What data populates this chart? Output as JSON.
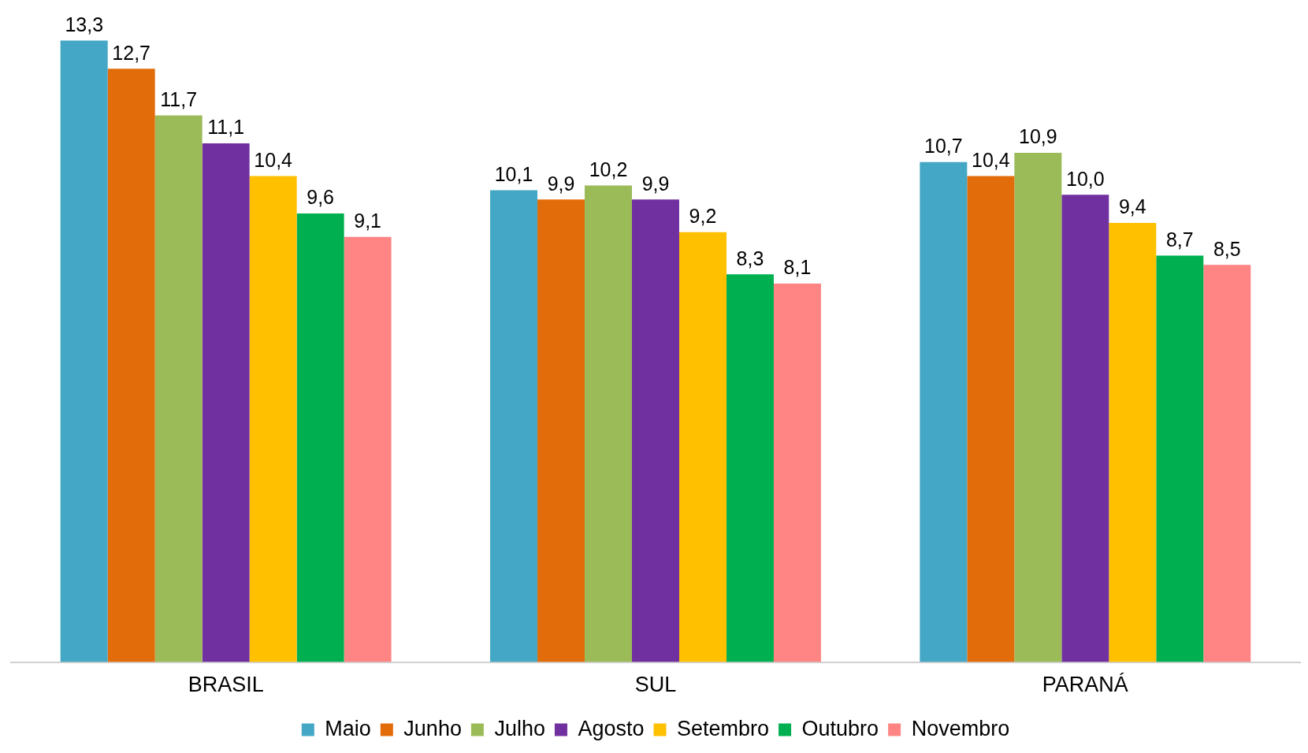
{
  "chart_data": {
    "type": "bar",
    "categories": [
      "BRASIL",
      "SUL",
      "PARANÁ"
    ],
    "series": [
      {
        "name": "Maio",
        "color": "#43a7c5",
        "values": [
          13.3,
          10.1,
          10.7
        ],
        "value_labels": [
          "13,3",
          "10,1",
          "10,7"
        ]
      },
      {
        "name": "Junho",
        "color": "#e36c0a",
        "values": [
          12.7,
          9.9,
          10.4
        ],
        "value_labels": [
          "12,7",
          "9,9",
          "10,4"
        ]
      },
      {
        "name": "Julho",
        "color": "#9bbb59",
        "values": [
          11.7,
          10.2,
          10.9
        ],
        "value_labels": [
          "11,7",
          "10,2",
          "10,9"
        ]
      },
      {
        "name": "Agosto",
        "color": "#7030a0",
        "values": [
          11.1,
          9.9,
          10.0
        ],
        "value_labels": [
          "11,1",
          "9,9",
          "10,0"
        ]
      },
      {
        "name": "Setembro",
        "color": "#ffc000",
        "values": [
          10.4,
          9.2,
          9.4
        ],
        "value_labels": [
          "10,4",
          "9,2",
          "9,4"
        ]
      },
      {
        "name": "Outubro",
        "color": "#00b050",
        "values": [
          9.6,
          8.3,
          8.7
        ],
        "value_labels": [
          "9,6",
          "8,3",
          "8,7"
        ]
      },
      {
        "name": "Novembro",
        "color": "#ff8585",
        "values": [
          9.1,
          8.1,
          8.5
        ],
        "value_labels": [
          "9,1",
          "8,1",
          "8,5"
        ]
      }
    ],
    "grid": false,
    "legend": "bottom"
  }
}
